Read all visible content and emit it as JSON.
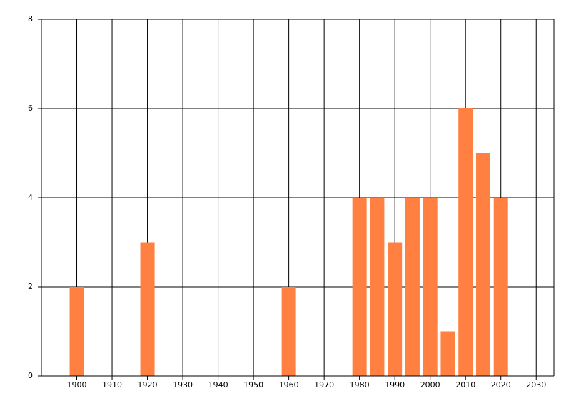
{
  "chart_data": {
    "type": "bar",
    "x": [
      1900,
      1920,
      1960,
      1980,
      1985,
      1990,
      1995,
      2000,
      2005,
      2010,
      2015,
      2020
    ],
    "values": [
      2,
      3,
      2,
      4,
      4,
      3,
      4,
      4,
      1,
      6,
      5,
      4
    ],
    "color": "#ff8040",
    "xlim": [
      1890,
      2035
    ],
    "xticks": [
      1900,
      1910,
      1920,
      1930,
      1940,
      1950,
      1960,
      1970,
      1980,
      1990,
      2000,
      2010,
      2020,
      2030
    ],
    "ylim": [
      0,
      8
    ],
    "yticks": [
      0,
      2,
      4,
      6,
      8
    ],
    "grid": true
  }
}
